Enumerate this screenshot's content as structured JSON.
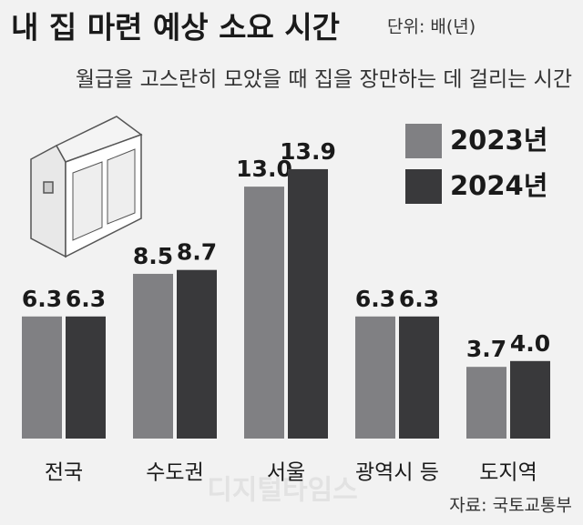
{
  "chart_data": {
    "type": "bar",
    "title": "내 집 마련 예상 소요 시간",
    "unit": "단위: 배(년)",
    "subtitle": "월급을 고스란히 모았을 때 집을 장만하는 데 걸리는 시간",
    "categories": [
      "전국",
      "수도권",
      "서울",
      "광역시 등",
      "도지역"
    ],
    "series": [
      {
        "name": "2023년",
        "color": "#808083",
        "values": [
          6.3,
          8.5,
          13,
          6.3,
          3.7
        ],
        "value_labels": [
          "6.3",
          "8.5",
          "13.0",
          "6.3",
          "3.7"
        ]
      },
      {
        "name": "2024년",
        "color": "#39393b",
        "values": [
          6.3,
          8.7,
          13.9,
          6.3,
          4
        ],
        "value_labels": [
          "6.3",
          "8.7",
          "13.9",
          "6.3",
          "4.0"
        ]
      }
    ],
    "source": "자료: 국토교통부",
    "watermark": "디지털타임스"
  }
}
